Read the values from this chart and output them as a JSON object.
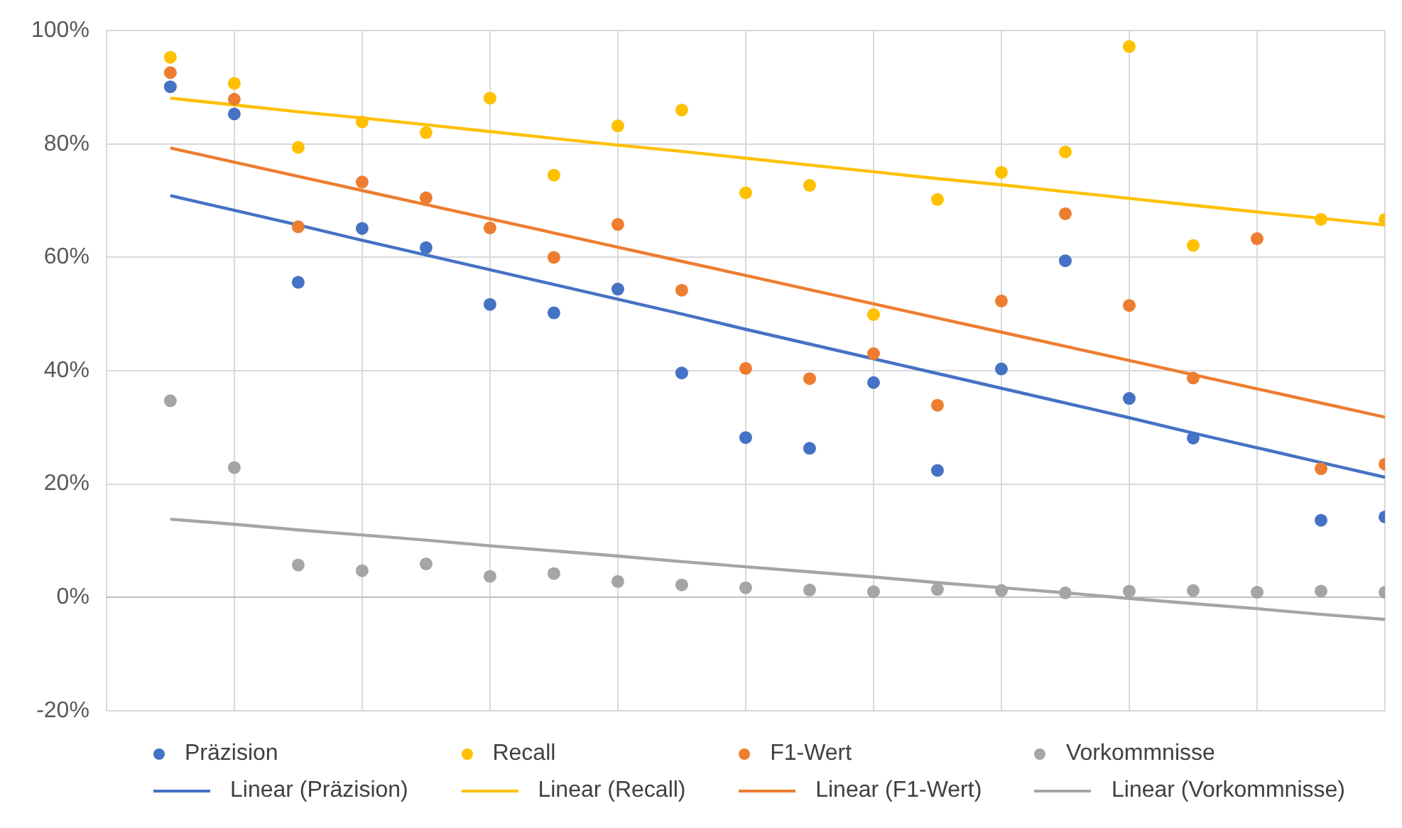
{
  "chart_data": {
    "type": "scatter",
    "categories": [
      null,
      null,
      null,
      null,
      null,
      null,
      null,
      null,
      null,
      null,
      null,
      null,
      null,
      null,
      null,
      null,
      null,
      null,
      null,
      null
    ],
    "ylim": [
      -20,
      100
    ],
    "yticks": [
      {
        "value": -20,
        "label": "-20%"
      },
      {
        "value": 0,
        "label": "0%"
      },
      {
        "value": 20,
        "label": "20%"
      },
      {
        "value": 40,
        "label": "40%"
      },
      {
        "value": 60,
        "label": "60%"
      },
      {
        "value": 80,
        "label": "80%"
      },
      {
        "value": 100,
        "label": "100%"
      }
    ],
    "tick_labels": "y",
    "grid": true,
    "legend": "bottom",
    "series": [
      {
        "name": "Präzision",
        "type": "scatter",
        "marker": "circle",
        "color": "#4472c4",
        "values": [
          90.1,
          85.3,
          55.6,
          65.1,
          61.7,
          51.7,
          50.2,
          54.4,
          39.6,
          28.2,
          26.3,
          37.9,
          22.4,
          40.3,
          59.4,
          35.1,
          28.1,
          null,
          13.6,
          14.2
        ]
      },
      {
        "name": "Recall",
        "type": "scatter",
        "marker": "circle",
        "color": "#ffc000",
        "values": [
          95.3,
          90.7,
          79.4,
          83.9,
          82.0,
          88.1,
          74.5,
          83.2,
          86.0,
          71.4,
          72.7,
          49.9,
          70.2,
          75.0,
          78.6,
          97.2,
          62.1,
          null,
          66.7,
          66.7
        ]
      },
      {
        "name": "F1-Wert",
        "type": "scatter",
        "marker": "circle",
        "color": "#ed7d31",
        "values": [
          92.6,
          87.9,
          65.4,
          73.3,
          70.5,
          65.2,
          60.0,
          65.8,
          54.2,
          40.4,
          38.6,
          43.0,
          33.9,
          52.3,
          67.7,
          51.5,
          38.7,
          63.3,
          22.7,
          23.5
        ]
      },
      {
        "name": "Vorkommnisse",
        "type": "scatter",
        "marker": "circle",
        "color": "#a5a5a5",
        "values": [
          34.7,
          22.9,
          5.7,
          4.7,
          5.9,
          3.7,
          4.2,
          2.8,
          2.2,
          1.7,
          1.3,
          1.0,
          1.4,
          1.2,
          0.8,
          1.1,
          1.2,
          0.9,
          1.1,
          0.9
        ]
      },
      {
        "name": "Linear (Präzision)",
        "type": "line",
        "marker": "none",
        "line_style": "solid",
        "color": "#4472c4",
        "values": [
          70.9,
          68.3,
          65.7,
          63.0,
          60.4,
          57.8,
          55.2,
          52.6,
          50.0,
          47.3,
          44.7,
          42.1,
          39.5,
          36.9,
          34.3,
          31.7,
          29.0,
          26.4,
          23.8,
          21.2
        ]
      },
      {
        "name": "Linear (Recall)",
        "type": "line",
        "marker": "none",
        "line_style": "solid",
        "color": "#ffc000",
        "values": [
          88.1,
          86.9,
          85.7,
          84.6,
          83.4,
          82.2,
          81.0,
          79.8,
          78.7,
          77.5,
          76.3,
          75.1,
          73.9,
          72.8,
          71.6,
          70.4,
          69.2,
          68.0,
          66.9,
          65.7
        ]
      },
      {
        "name": "Linear (F1-Wert)",
        "type": "line",
        "marker": "none",
        "line_style": "solid",
        "color": "#ed7d31",
        "values": [
          79.3,
          76.8,
          74.3,
          71.8,
          69.3,
          66.8,
          64.3,
          61.8,
          59.3,
          56.8,
          54.3,
          51.8,
          49.3,
          46.8,
          44.3,
          41.8,
          39.3,
          36.8,
          34.3,
          31.8
        ]
      },
      {
        "name": "Linear (Vorkommnisse)",
        "type": "line",
        "marker": "none",
        "line_style": "solid",
        "color": "#a5a5a5",
        "values": [
          13.8,
          12.9,
          11.9,
          11.0,
          10.1,
          9.1,
          8.2,
          7.3,
          6.3,
          5.4,
          4.5,
          3.6,
          2.6,
          1.7,
          0.8,
          -0.2,
          -1.1,
          -2.0,
          -3.0,
          -3.9
        ]
      }
    ]
  }
}
